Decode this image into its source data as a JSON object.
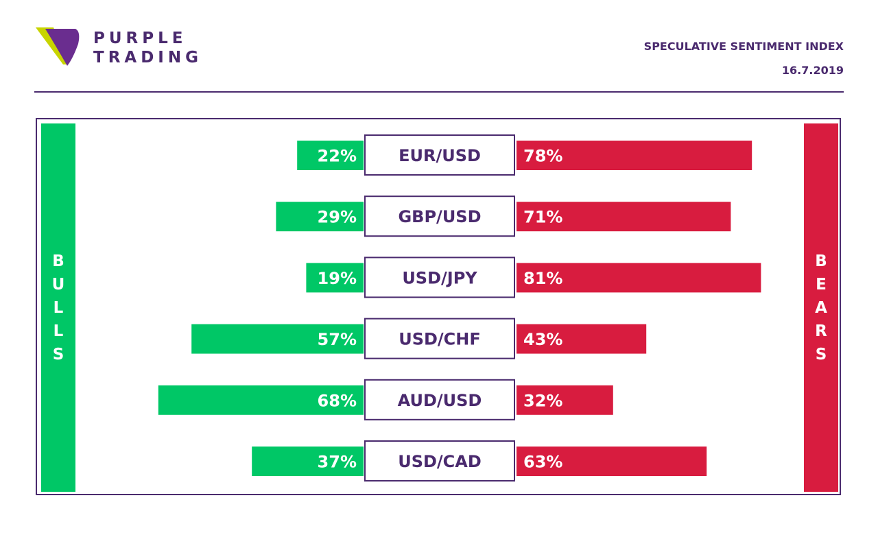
{
  "brand": {
    "line1": "PURPLE",
    "line2": "TRADING"
  },
  "header": {
    "title": "SPECULATIVE SENTIMENT INDEX",
    "date": "16.7.2019"
  },
  "colors": {
    "bulls": "#00c766",
    "bears": "#d81c3f",
    "purple": "#4a2a6e"
  },
  "chart_data": {
    "type": "bar",
    "categories": [
      "EUR/USD",
      "GBP/USD",
      "USD/JPY",
      "USD/CHF",
      "AUD/USD",
      "USD/CAD"
    ],
    "series": [
      {
        "name": "BULLS",
        "values": [
          22,
          29,
          19,
          57,
          68,
          37
        ],
        "color": "#00c766"
      },
      {
        "name": "BEARS",
        "values": [
          78,
          71,
          81,
          43,
          32,
          63
        ],
        "color": "#d81c3f"
      }
    ],
    "value_suffix": "%",
    "ylim": [
      0,
      100
    ]
  }
}
